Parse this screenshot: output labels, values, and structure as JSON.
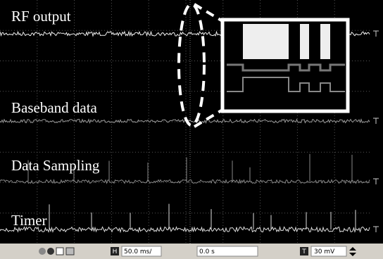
{
  "traces": [
    {
      "label": "RF output"
    },
    {
      "label": "Baseband data"
    },
    {
      "label": "Data Sampling"
    },
    {
      "label": "Timer"
    }
  ],
  "toolbar": {
    "h_button": "H",
    "timebase": "50.0 ms/",
    "position": "0.0 s",
    "t_button": "T",
    "trigger_level": "30 mV"
  }
}
